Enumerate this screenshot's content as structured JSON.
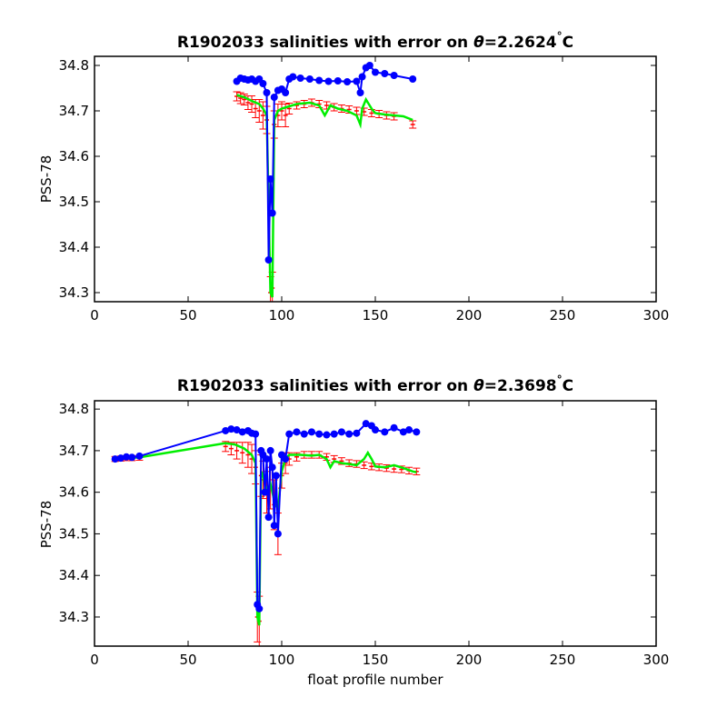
{
  "chart_data": [
    {
      "type": "line",
      "title_prefix": "R1902033 salinities with error on ",
      "title_theta": "θ",
      "title_value": "=2.2624",
      "title_unit": "C",
      "xlabel": "",
      "ylabel": "PSS-78",
      "xlim": [
        0,
        300
      ],
      "ylim": [
        34.28,
        34.82
      ],
      "xticks": [
        0,
        50,
        100,
        150,
        200,
        250,
        300
      ],
      "yticks": [
        34.3,
        34.4,
        34.5,
        34.6,
        34.7,
        34.8
      ],
      "colors": {
        "blue": "#0000ff",
        "red": "#ff0000",
        "green": "#00ee00"
      },
      "series": [
        {
          "role": "float",
          "color": "#0000ff",
          "x": [
            76,
            78,
            80,
            82,
            84,
            86,
            88,
            90,
            92,
            93,
            94,
            95,
            96,
            98,
            100,
            102,
            104,
            106,
            110,
            115,
            120,
            125,
            130,
            135,
            140,
            142,
            143,
            145,
            147,
            150,
            155,
            160,
            170
          ],
          "y": [
            34.765,
            34.772,
            34.77,
            34.768,
            34.77,
            34.765,
            34.77,
            34.76,
            34.74,
            34.372,
            34.55,
            34.475,
            34.73,
            34.745,
            34.748,
            34.74,
            34.77,
            34.775,
            34.772,
            34.77,
            34.767,
            34.765,
            34.766,
            34.764,
            34.765,
            34.74,
            34.775,
            34.795,
            34.8,
            34.785,
            34.782,
            34.778,
            34.77
          ]
        },
        {
          "role": "mapped",
          "color": "#00ee00",
          "x": [
            76,
            80,
            85,
            88,
            90,
            92,
            94,
            95,
            96,
            98,
            100,
            104,
            108,
            115,
            120,
            123,
            126,
            130,
            135,
            140,
            142,
            143,
            145,
            148,
            150,
            155,
            160,
            165,
            170
          ],
          "y": [
            34.735,
            34.73,
            34.72,
            34.715,
            34.705,
            34.69,
            34.3,
            34.29,
            34.68,
            34.7,
            34.705,
            34.71,
            34.715,
            34.718,
            34.712,
            34.69,
            34.712,
            34.705,
            34.7,
            34.69,
            34.67,
            34.705,
            34.725,
            34.705,
            34.695,
            34.692,
            34.69,
            34.688,
            34.68
          ]
        },
        {
          "role": "mapped-error",
          "color": "#ff0000",
          "x": [
            76,
            78,
            80,
            82,
            84,
            86,
            88,
            90,
            92,
            94,
            95,
            96,
            98,
            100,
            102,
            104,
            108,
            112,
            116,
            120,
            124,
            128,
            132,
            136,
            140,
            144,
            148,
            152,
            156,
            160,
            170
          ],
          "y": [
            34.732,
            34.728,
            34.725,
            34.718,
            34.715,
            34.705,
            34.7,
            34.69,
            34.68,
            34.3,
            34.31,
            34.67,
            34.69,
            34.7,
            34.69,
            34.705,
            34.712,
            34.715,
            34.718,
            34.715,
            34.712,
            34.708,
            34.705,
            34.703,
            34.7,
            34.698,
            34.695,
            34.693,
            34.69,
            34.688,
            34.67
          ],
          "err": [
            0.01,
            0.012,
            0.012,
            0.015,
            0.018,
            0.02,
            0.025,
            0.03,
            0.03,
            0.035,
            0.035,
            0.03,
            0.025,
            0.02,
            0.025,
            0.012,
            0.008,
            0.008,
            0.008,
            0.008,
            0.008,
            0.008,
            0.008,
            0.008,
            0.008,
            0.008,
            0.008,
            0.008,
            0.008,
            0.008,
            0.008
          ]
        }
      ]
    },
    {
      "type": "line",
      "title_prefix": "R1902033 salinities with error on ",
      "title_theta": "θ",
      "title_value": "=2.3698",
      "title_unit": "C",
      "xlabel": "float profile number",
      "ylabel": "PSS-78",
      "xlim": [
        0,
        300
      ],
      "ylim": [
        34.23,
        34.82
      ],
      "xticks": [
        0,
        50,
        100,
        150,
        200,
        250,
        300
      ],
      "yticks": [
        34.3,
        34.4,
        34.5,
        34.6,
        34.7,
        34.8
      ],
      "colors": {
        "blue": "#0000ff",
        "red": "#ff0000",
        "green": "#00ee00"
      },
      "series": [
        {
          "role": "float",
          "color": "#0000ff",
          "x": [
            11,
            14,
            17,
            20,
            24,
            70,
            73,
            76,
            79,
            82,
            84,
            86,
            87,
            88,
            89,
            90,
            91,
            92,
            93,
            94,
            95,
            96,
            97,
            98,
            100,
            102,
            104,
            108,
            112,
            116,
            120,
            124,
            128,
            132,
            136,
            140,
            145,
            148,
            150,
            155,
            160,
            165,
            168,
            172
          ],
          "y": [
            34.68,
            34.682,
            34.685,
            34.684,
            34.687,
            34.748,
            34.752,
            34.75,
            34.745,
            34.748,
            34.742,
            34.74,
            34.33,
            34.32,
            34.7,
            34.69,
            34.6,
            34.68,
            34.54,
            34.7,
            34.66,
            34.52,
            34.64,
            34.5,
            34.69,
            34.68,
            34.74,
            34.745,
            34.74,
            34.745,
            34.74,
            34.738,
            34.74,
            34.745,
            34.74,
            34.742,
            34.765,
            34.76,
            34.75,
            34.745,
            34.755,
            34.745,
            34.75,
            34.745
          ]
        },
        {
          "role": "mapped",
          "color": "#00ee00",
          "x": [
            11,
            24,
            70,
            75,
            80,
            84,
            86,
            87,
            88,
            89,
            90,
            92,
            94,
            96,
            98,
            100,
            102,
            104,
            110,
            116,
            120,
            124,
            126,
            128,
            132,
            136,
            140,
            144,
            146,
            148,
            150,
            155,
            160,
            165,
            170,
            172
          ],
          "y": [
            34.68,
            34.684,
            34.718,
            34.715,
            34.705,
            34.69,
            34.67,
            34.3,
            34.28,
            34.65,
            34.64,
            34.6,
            34.62,
            34.58,
            34.56,
            34.65,
            34.68,
            34.69,
            34.69,
            34.688,
            34.69,
            34.68,
            34.66,
            34.675,
            34.67,
            34.668,
            34.665,
            34.68,
            34.695,
            34.68,
            34.662,
            34.66,
            34.665,
            34.658,
            34.65,
            34.648
          ]
        },
        {
          "role": "mapped-error",
          "color": "#ff0000",
          "x": [
            11,
            14,
            17,
            20,
            24,
            70,
            73,
            76,
            79,
            82,
            84,
            86,
            87,
            88,
            89,
            90,
            92,
            94,
            96,
            98,
            100,
            102,
            104,
            108,
            112,
            116,
            120,
            124,
            128,
            132,
            136,
            140,
            144,
            148,
            152,
            156,
            160,
            164,
            168,
            172
          ],
          "y": [
            34.68,
            34.681,
            34.682,
            34.682,
            34.683,
            34.71,
            34.705,
            34.7,
            34.695,
            34.69,
            34.68,
            34.66,
            34.3,
            34.29,
            34.64,
            34.63,
            34.6,
            34.61,
            34.57,
            34.5,
            34.64,
            34.67,
            34.68,
            34.685,
            34.69,
            34.69,
            34.69,
            34.685,
            34.68,
            34.675,
            34.67,
            34.668,
            34.665,
            34.662,
            34.66,
            34.658,
            34.656,
            34.655,
            34.652,
            34.65
          ],
          "err": [
            0.006,
            0.006,
            0.006,
            0.006,
            0.006,
            0.012,
            0.015,
            0.02,
            0.025,
            0.03,
            0.035,
            0.04,
            0.06,
            0.06,
            0.05,
            0.045,
            0.05,
            0.05,
            0.06,
            0.05,
            0.03,
            0.025,
            0.015,
            0.01,
            0.008,
            0.008,
            0.008,
            0.008,
            0.008,
            0.008,
            0.008,
            0.008,
            0.008,
            0.008,
            0.008,
            0.008,
            0.008,
            0.008,
            0.008,
            0.008
          ]
        }
      ]
    }
  ]
}
